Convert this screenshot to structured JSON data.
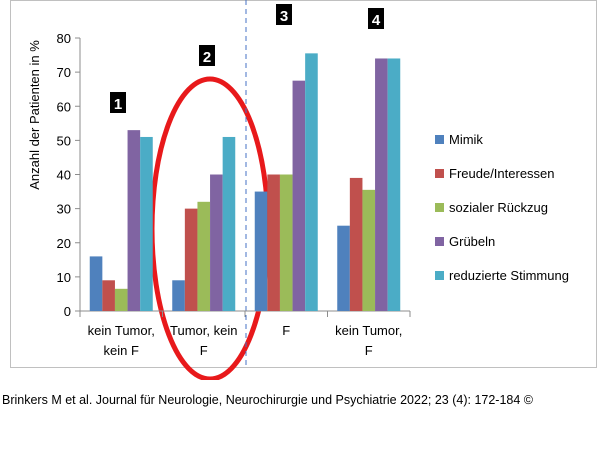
{
  "chart_data": {
    "type": "bar",
    "ylabel": "Anzahl der Patienten in %",
    "ylim": [
      0,
      80
    ],
    "yticks": [
      0,
      10,
      20,
      30,
      40,
      50,
      60,
      70,
      80
    ],
    "categories": [
      [
        "kein Tumor,",
        "kein F"
      ],
      [
        "Tumor, kein",
        "F"
      ],
      [
        "F"
      ],
      [
        "kein Tumor,",
        "F"
      ]
    ],
    "series": [
      {
        "name": "Mimik",
        "color": "#4f81bd",
        "values": [
          16,
          9,
          35,
          25
        ]
      },
      {
        "name": "Freude/Interessen",
        "color": "#c0504d",
        "values": [
          9,
          30,
          40,
          39
        ]
      },
      {
        "name": "sozialer Rückzug",
        "color": "#9bbb59",
        "values": [
          6.5,
          32,
          40,
          35.5
        ]
      },
      {
        "name": "Grübeln",
        "color": "#8064a2",
        "values": [
          53,
          40,
          67.5,
          74
        ]
      },
      {
        "name": "reduzierte Stimmung",
        "color": "#4bacc6",
        "values": [
          51,
          51,
          75.5,
          74
        ]
      }
    ],
    "grid": false,
    "legend_position": "right",
    "group_markers": [
      "1",
      "2",
      "3",
      "4"
    ]
  },
  "citation": "Brinkers M et al. Journal für Neurologie, Neurochirurgie und Psychiatrie 2022; 23 (4): 172-184 ©"
}
